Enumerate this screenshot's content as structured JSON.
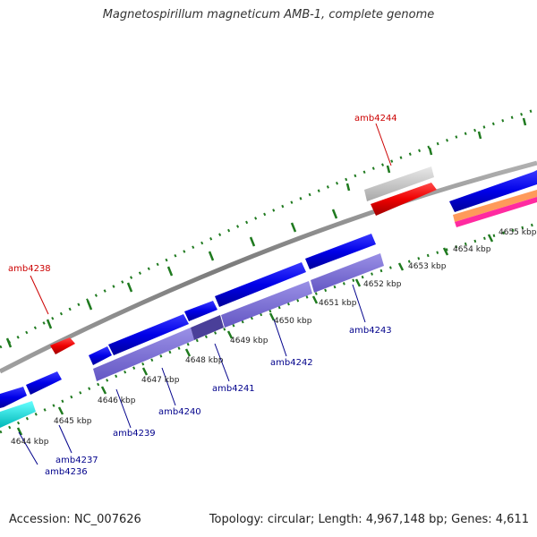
{
  "title": "Magnetospirillum magneticum AMB-1, complete genome",
  "footer": {
    "accession_label": "Accession:",
    "accession": "NC_007626",
    "topology_label": "Topology:",
    "topology": "circular",
    "length_label": "Length:",
    "length": "4,967,148 bp",
    "genes_label": "Genes:",
    "genes": "4,611"
  },
  "colors": {
    "gene_forward": "#0000e8",
    "gene_reverse": "#ee0000",
    "gene_cyan": "#00e6e6",
    "gene_grey": "#c8c8c8",
    "cds_band": "#7b6fd0",
    "backbone": "#8c8c8c",
    "tick": "#1f7a1f",
    "label_red": "#cc0000",
    "label_blue": "#00008b"
  },
  "map": {
    "scale_labels": [
      {
        "id": "kbp-4644",
        "text": "4644 kbp"
      },
      {
        "id": "kbp-4645",
        "text": "4645 kbp"
      },
      {
        "id": "kbp-4646",
        "text": "4646 kbp"
      },
      {
        "id": "kbp-4647",
        "text": "4647 kbp"
      },
      {
        "id": "kbp-4648",
        "text": "4648 kbp"
      },
      {
        "id": "kbp-4649",
        "text": "4649 kbp"
      },
      {
        "id": "kbp-4650",
        "text": "4650 kbp"
      },
      {
        "id": "kbp-4651",
        "text": "4651 kbp"
      },
      {
        "id": "kbp-4652",
        "text": "4652 kbp"
      },
      {
        "id": "kbp-4653",
        "text": "4653 kbp"
      },
      {
        "id": "kbp-4654",
        "text": "4654 kbp"
      },
      {
        "id": "kbp-4655",
        "text": "4655 kbp"
      }
    ],
    "gene_labels": [
      {
        "id": "amb4244",
        "text": "amb4244",
        "strand": "reverse"
      },
      {
        "id": "amb4238",
        "text": "amb4238",
        "strand": "reverse"
      },
      {
        "id": "amb4243",
        "text": "amb4243",
        "strand": "forward"
      },
      {
        "id": "amb4242",
        "text": "amb4242",
        "strand": "forward"
      },
      {
        "id": "amb4241",
        "text": "amb4241",
        "strand": "forward"
      },
      {
        "id": "amb4240",
        "text": "amb4240",
        "strand": "forward"
      },
      {
        "id": "amb4239",
        "text": "amb4239",
        "strand": "forward"
      },
      {
        "id": "amb4237",
        "text": "amb4237",
        "strand": "forward"
      },
      {
        "id": "amb4236",
        "text": "amb4236",
        "strand": "forward"
      }
    ]
  }
}
